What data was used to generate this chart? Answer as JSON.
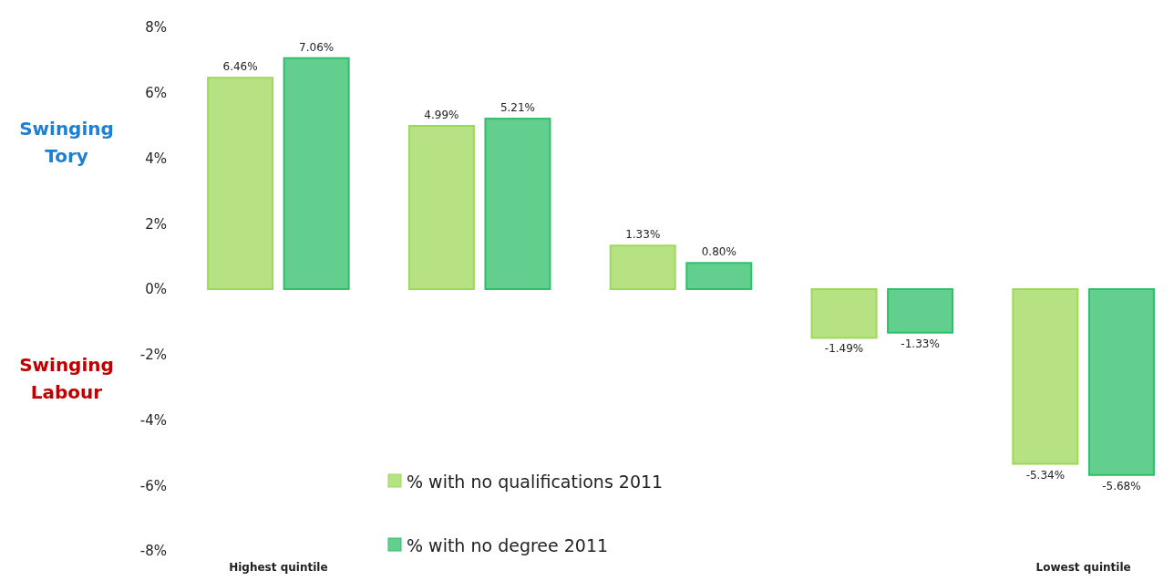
{
  "chart_data": {
    "type": "bar",
    "categories": [
      "Highest quintile",
      null,
      null,
      null,
      "Lowest quintile"
    ],
    "series": [
      {
        "name": "% with no qualifications 2011",
        "color": "#9ed85a",
        "values": [
          6.46,
          4.99,
          1.33,
          -1.49,
          -5.34
        ],
        "value_labels": [
          "6.46%",
          "4.99%",
          "1.33%",
          "-1.49%",
          "-5.34%"
        ]
      },
      {
        "name": "% with no degree 2011",
        "color": "#2dbf6a",
        "values": [
          7.06,
          5.21,
          0.8,
          -1.33,
          -5.68
        ],
        "value_labels": [
          "7.06%",
          "5.21%",
          "0.80%",
          "-1.33%",
          "-5.68%"
        ]
      }
    ],
    "ylim": [
      -8,
      8
    ],
    "yticks": [
      {
        "value": 8,
        "label": "8%"
      },
      {
        "value": 6,
        "label": "6%"
      },
      {
        "value": 4,
        "label": "4%"
      },
      {
        "value": 2,
        "label": "2%"
      },
      {
        "value": 0,
        "label": "0%"
      },
      {
        "value": -2,
        "label": "-2%"
      },
      {
        "value": -4,
        "label": "-4%"
      },
      {
        "value": -6,
        "label": "-6%"
      },
      {
        "value": -8,
        "label": "-8%"
      }
    ],
    "annotations": [
      "Swinging Tory",
      "Swinging Labour"
    ],
    "legend": "bottom",
    "grid": false
  }
}
